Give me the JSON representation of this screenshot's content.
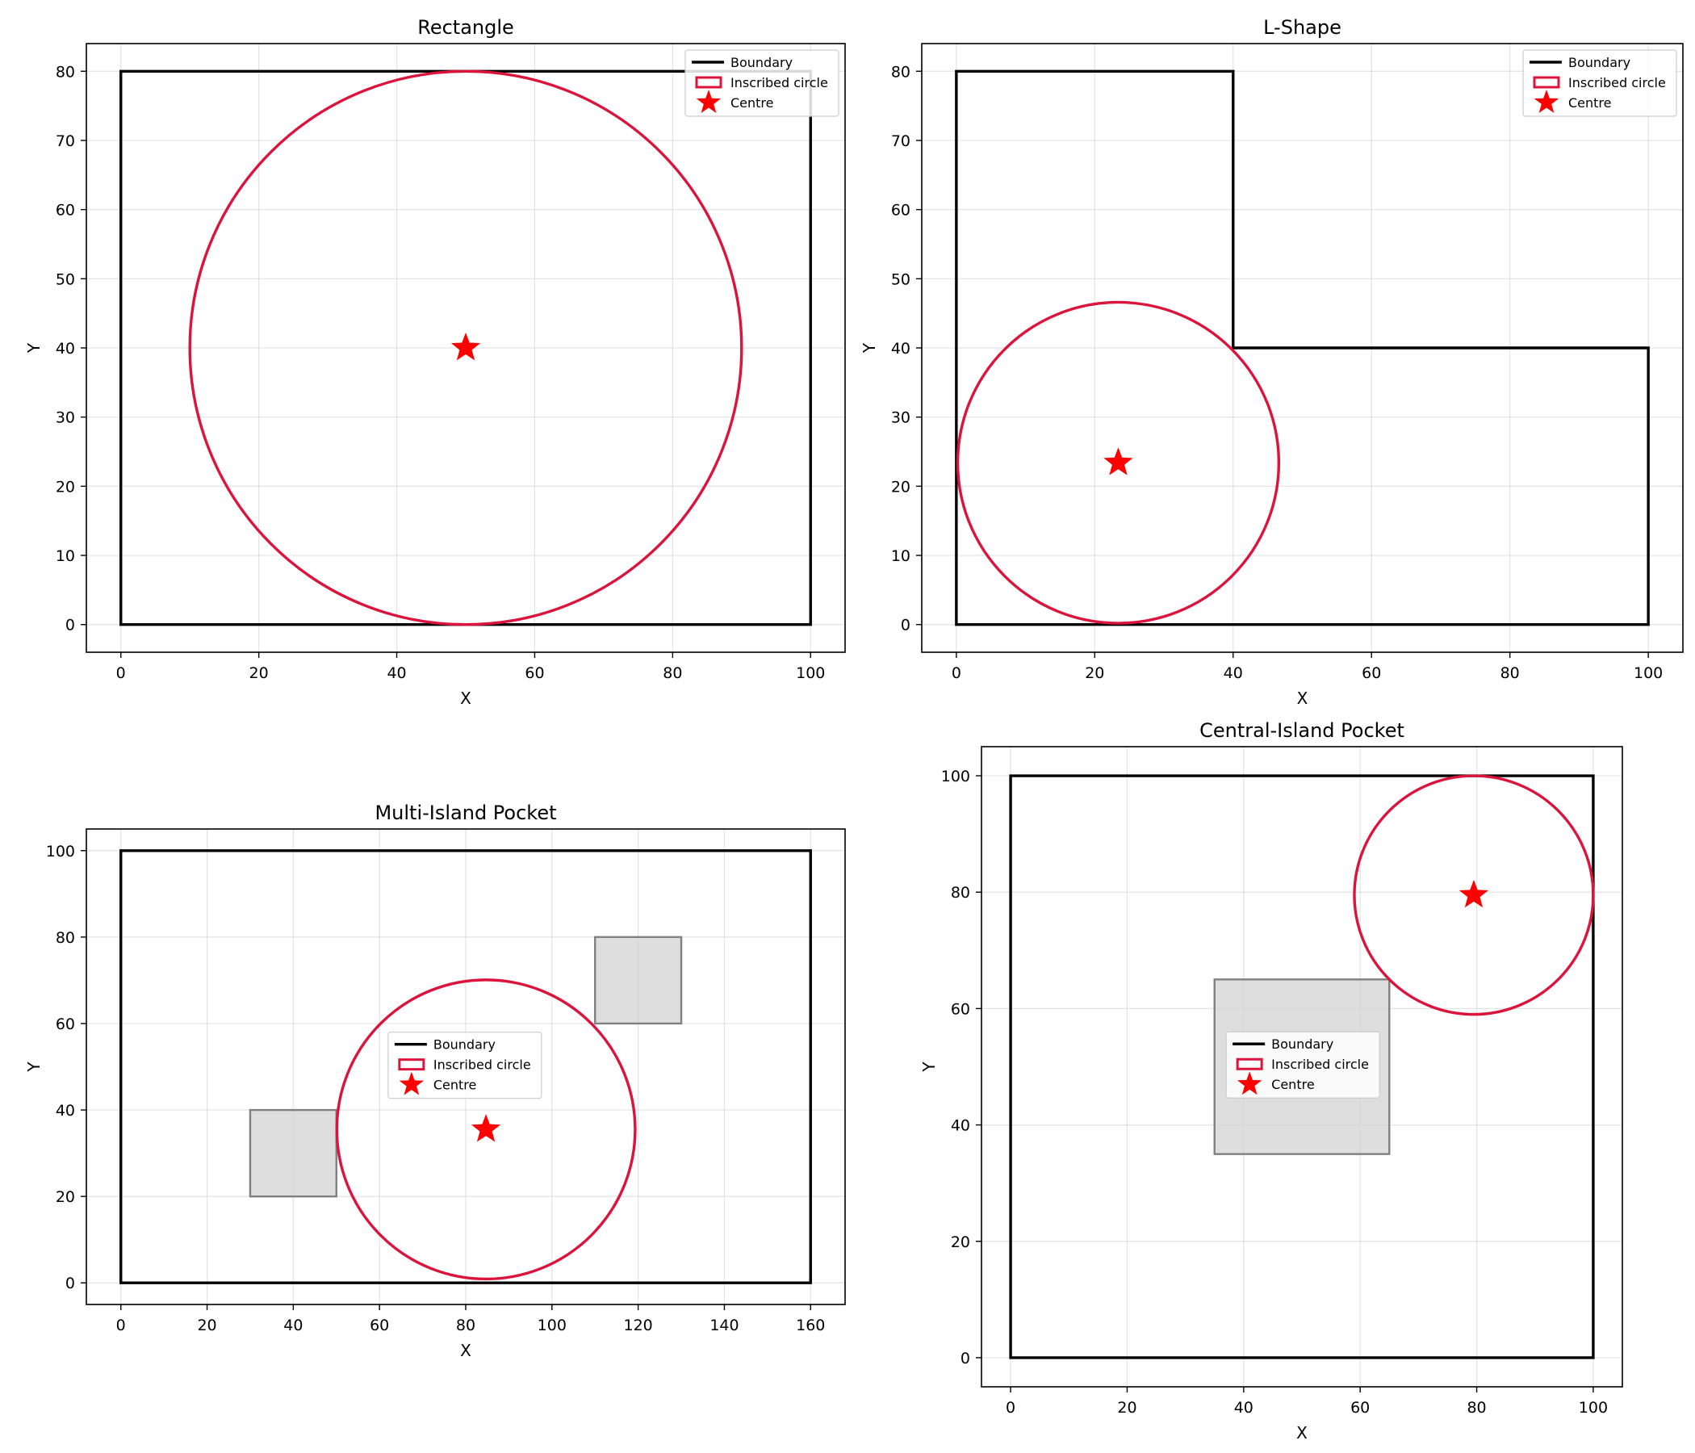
{
  "chart_data": [
    {
      "type": "scatter",
      "title": "Rectangle",
      "xlabel": "X",
      "ylabel": "Y",
      "xlim": [
        -5,
        105
      ],
      "ylim": [
        -4,
        84
      ],
      "xticks": [
        0,
        20,
        40,
        60,
        80,
        100
      ],
      "yticks": [
        0,
        10,
        20,
        30,
        40,
        50,
        60,
        70,
        80
      ],
      "grid": true,
      "legend_position": "top-right",
      "legend": [
        "Boundary",
        "Inscribed circle",
        "Centre"
      ],
      "boundary": [
        [
          0,
          0
        ],
        [
          100,
          0
        ],
        [
          100,
          80
        ],
        [
          0,
          80
        ]
      ],
      "islands": [],
      "inscribed_circle": {
        "center": [
          50,
          40
        ],
        "radius": 40
      }
    },
    {
      "type": "scatter",
      "title": "L-Shape",
      "xlabel": "X",
      "ylabel": "Y",
      "xlim": [
        -5,
        105
      ],
      "ylim": [
        -4,
        84
      ],
      "xticks": [
        0,
        20,
        40,
        60,
        80,
        100
      ],
      "yticks": [
        0,
        10,
        20,
        30,
        40,
        50,
        60,
        70,
        80
      ],
      "grid": true,
      "legend_position": "top-right",
      "legend": [
        "Boundary",
        "Inscribed circle",
        "Centre"
      ],
      "boundary": [
        [
          0,
          0
        ],
        [
          100,
          0
        ],
        [
          100,
          40
        ],
        [
          40,
          40
        ],
        [
          40,
          80
        ],
        [
          0,
          80
        ]
      ],
      "islands": [],
      "inscribed_circle": {
        "center": [
          23.4,
          23.4
        ],
        "radius": 23.2
      }
    },
    {
      "type": "scatter",
      "title": "Multi-Island Pocket",
      "xlabel": "X",
      "ylabel": "Y",
      "xlim": [
        -8,
        168
      ],
      "ylim": [
        -5,
        105
      ],
      "xticks": [
        0,
        20,
        40,
        60,
        80,
        100,
        120,
        140,
        160
      ],
      "yticks": [
        0,
        20,
        40,
        60,
        80,
        100
      ],
      "grid": true,
      "legend_position": "center",
      "legend": [
        "Boundary",
        "Inscribed circle",
        "Centre"
      ],
      "boundary": [
        [
          0,
          0
        ],
        [
          160,
          0
        ],
        [
          160,
          100
        ],
        [
          0,
          100
        ]
      ],
      "islands": [
        [
          [
            30,
            20
          ],
          [
            50,
            20
          ],
          [
            50,
            40
          ],
          [
            30,
            40
          ]
        ],
        [
          [
            110,
            60
          ],
          [
            130,
            60
          ],
          [
            130,
            80
          ],
          [
            110,
            80
          ]
        ]
      ],
      "inscribed_circle": {
        "center": [
          84.7,
          35.5
        ],
        "radius": 34.6
      }
    },
    {
      "type": "scatter",
      "title": "Central-Island Pocket",
      "xlabel": "X",
      "ylabel": "Y",
      "xlim": [
        -5,
        105
      ],
      "ylim": [
        -5,
        105
      ],
      "xticks": [
        0,
        20,
        40,
        60,
        80,
        100
      ],
      "yticks": [
        0,
        20,
        40,
        60,
        80,
        100
      ],
      "grid": true,
      "legend_position": "center-left",
      "legend": [
        "Boundary",
        "Inscribed circle",
        "Centre"
      ],
      "boundary": [
        [
          0,
          0
        ],
        [
          100,
          0
        ],
        [
          100,
          100
        ],
        [
          0,
          100
        ]
      ],
      "islands": [
        [
          [
            35,
            35
          ],
          [
            65,
            35
          ],
          [
            65,
            65
          ],
          [
            35,
            65
          ]
        ]
      ],
      "inscribed_circle": {
        "center": [
          79.5,
          79.5
        ],
        "radius": 20.5
      }
    }
  ]
}
